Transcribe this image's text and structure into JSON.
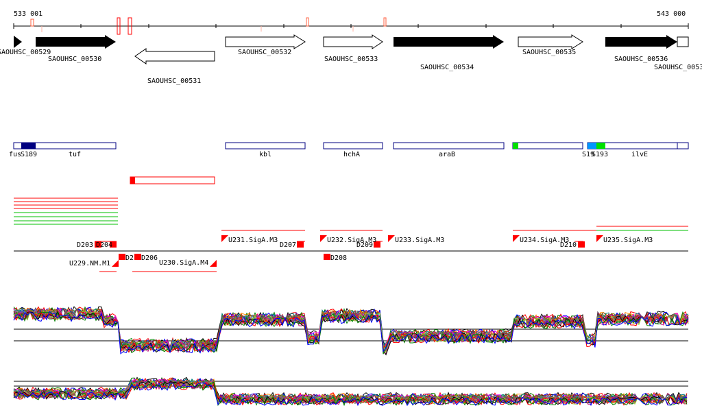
{
  "coords": {
    "start": "533 001",
    "end": "543 000"
  },
  "genes": [
    {
      "name": "SAOUHSC_00529",
      "strand": "+",
      "fill": "black"
    },
    {
      "name": "SAOUHSC_00530",
      "strand": "+",
      "fill": "black"
    },
    {
      "name": "SAOUHSC_00531",
      "strand": "-",
      "fill": "white"
    },
    {
      "name": "SAOUHSC_00532",
      "strand": "+",
      "fill": "white"
    },
    {
      "name": "SAOUHSC_00533",
      "strand": "+",
      "fill": "white"
    },
    {
      "name": "SAOUHSC_00534",
      "strand": "+",
      "fill": "black"
    },
    {
      "name": "SAOUHSC_00535",
      "strand": "+",
      "fill": "white"
    },
    {
      "name": "SAOUHSC_00536",
      "strand": "+",
      "fill": "black"
    },
    {
      "name": "SAOUHSC_0053",
      "strand": "+",
      "fill": "white"
    }
  ],
  "operons": [
    {
      "label": "fus"
    },
    {
      "label": "S189"
    },
    {
      "label": "tuf"
    },
    {
      "label": "kbl"
    },
    {
      "label": "hchA"
    },
    {
      "label": "araB"
    },
    {
      "label": "S19"
    },
    {
      "label": "S193"
    },
    {
      "label": "ilvE"
    }
  ],
  "regulators": [
    {
      "label": "D203"
    },
    {
      "label": "D204"
    },
    {
      "label": "U229.NM.M1"
    },
    {
      "label": "D2"
    },
    {
      "label": "D206"
    },
    {
      "label": "U230.SigA.M4"
    },
    {
      "label": "U231.SigA.M3"
    },
    {
      "label": "D207"
    },
    {
      "label": "U232.SigA.M3"
    },
    {
      "label": "D209"
    },
    {
      "label": "D208"
    },
    {
      "label": "U233.SigA.M3"
    },
    {
      "label": "U234.SigA.M3"
    },
    {
      "label": "D210"
    },
    {
      "label": "U235.SigA.M3"
    }
  ],
  "colors": {
    "gene_fill": "#000000",
    "operon_outline": "#000080",
    "operon_dark": "#000080",
    "operon_green": "#00e000",
    "operon_blue": "#0096ff",
    "red": "#ff0000",
    "green": "#00c000"
  }
}
